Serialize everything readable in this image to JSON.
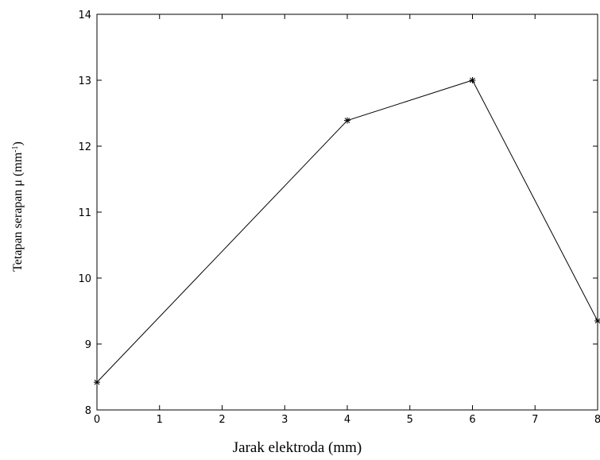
{
  "chart_data": {
    "type": "line",
    "title": "",
    "xlabel": "Jarak elektroda (mm)",
    "ylabel": {
      "main": "Tetapan serapan μ (mm",
      "sup": "-1",
      "close": ")"
    },
    "xlim": [
      0,
      8
    ],
    "ylim": [
      8,
      14
    ],
    "xticks": [
      0,
      1,
      2,
      3,
      4,
      5,
      6,
      7,
      8
    ],
    "yticks": [
      8,
      9,
      10,
      11,
      12,
      13,
      14
    ],
    "grid": false,
    "marker": "asterisk",
    "line_color": "#000000",
    "series": [
      {
        "x": [
          0,
          4,
          6,
          8
        ],
        "y": [
          8.42,
          12.39,
          13.0,
          9.35
        ]
      }
    ]
  }
}
